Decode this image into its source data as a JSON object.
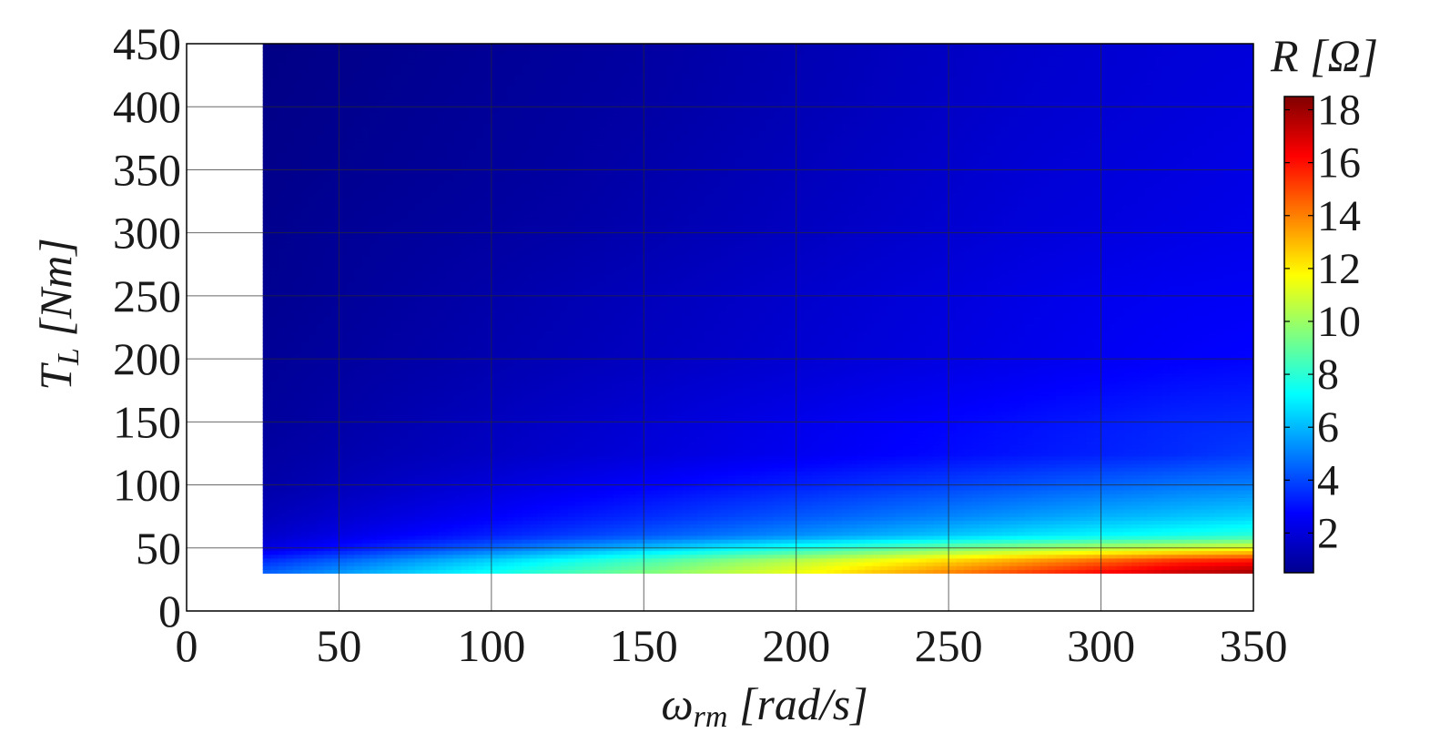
{
  "chart_data": {
    "type": "heatmap",
    "title": "",
    "xlabel": {
      "symbol": "ω",
      "subscript": "rm",
      "unit": " [rad/s]"
    },
    "ylabel": {
      "symbol": "T",
      "subscript": "L",
      "unit": " [Nm]"
    },
    "xlim": [
      0,
      350
    ],
    "ylim": [
      0,
      450
    ],
    "xticks": [
      0,
      50,
      100,
      150,
      200,
      250,
      300,
      350
    ],
    "yticks": [
      0,
      50,
      100,
      150,
      200,
      250,
      300,
      350,
      400,
      450
    ],
    "grid": true,
    "colormap": "jet",
    "data_extent": {
      "x": [
        25,
        350
      ],
      "y": [
        30,
        450
      ]
    },
    "x": [
      25,
      50,
      75,
      100,
      125,
      150,
      175,
      200,
      225,
      250,
      275,
      300,
      325,
      350
    ],
    "y": [
      30,
      40,
      50,
      60,
      75,
      100,
      125,
      150,
      200,
      250,
      300,
      350,
      400,
      450
    ],
    "z": [
      [
        4.5,
        5.5,
        6.5,
        7.5,
        8.5,
        9.5,
        10.5,
        11.5,
        12.8,
        14.0,
        15.2,
        16.3,
        17.3,
        18.0
      ],
      [
        3.5,
        4.5,
        5.5,
        6.5,
        7.5,
        8.5,
        9.5,
        10.5,
        11.5,
        12.5,
        13.5,
        14.5,
        15.5,
        16.0
      ],
      [
        2.2,
        3.0,
        3.8,
        4.6,
        5.4,
        6.2,
        7.0,
        7.8,
        8.6,
        9.4,
        10.0,
        10.6,
        11.0,
        11.5
      ],
      [
        1.8,
        2.3,
        2.8,
        3.3,
        3.8,
        4.3,
        4.8,
        5.3,
        5.8,
        6.3,
        6.8,
        7.2,
        7.6,
        8.0
      ],
      [
        1.5,
        1.9,
        2.3,
        2.7,
        3.1,
        3.5,
        3.9,
        4.3,
        4.7,
        5.1,
        5.5,
        5.9,
        6.2,
        6.5
      ],
      [
        1.2,
        1.5,
        1.8,
        2.1,
        2.4,
        2.7,
        3.0,
        3.3,
        3.6,
        3.9,
        4.2,
        4.5,
        4.8,
        5.0
      ],
      [
        1.1,
        1.3,
        1.5,
        1.7,
        1.9,
        2.1,
        2.3,
        2.5,
        2.7,
        2.9,
        3.1,
        3.3,
        3.5,
        3.8
      ],
      [
        1.0,
        1.2,
        1.4,
        1.6,
        1.8,
        2.0,
        2.2,
        2.4,
        2.6,
        2.8,
        3.0,
        3.2,
        3.4,
        3.5
      ],
      [
        0.9,
        1.05,
        1.2,
        1.35,
        1.5,
        1.65,
        1.8,
        1.95,
        2.1,
        2.25,
        2.4,
        2.55,
        2.7,
        2.8
      ],
      [
        0.8,
        0.95,
        1.1,
        1.25,
        1.4,
        1.55,
        1.7,
        1.85,
        2.0,
        2.15,
        2.3,
        2.45,
        2.55,
        2.6
      ],
      [
        0.75,
        0.9,
        1.0,
        1.1,
        1.2,
        1.35,
        1.5,
        1.65,
        1.8,
        1.95,
        2.1,
        2.2,
        2.3,
        2.4
      ],
      [
        0.7,
        0.8,
        0.9,
        1.0,
        1.1,
        1.25,
        1.4,
        1.55,
        1.7,
        1.85,
        2.0,
        2.1,
        2.2,
        2.3
      ],
      [
        0.65,
        0.75,
        0.85,
        0.95,
        1.05,
        1.15,
        1.3,
        1.45,
        1.6,
        1.75,
        1.9,
        2.0,
        2.1,
        2.2
      ],
      [
        0.6,
        0.7,
        0.8,
        0.9,
        1.0,
        1.1,
        1.25,
        1.4,
        1.55,
        1.7,
        1.85,
        1.95,
        2.05,
        2.1
      ]
    ],
    "colorbar": {
      "label": {
        "symbol": "R",
        "unit": " [Ω]"
      },
      "range": [
        0.5,
        18.5
      ],
      "ticks": [
        2,
        4,
        6,
        8,
        10,
        12,
        14,
        16,
        18
      ]
    }
  }
}
